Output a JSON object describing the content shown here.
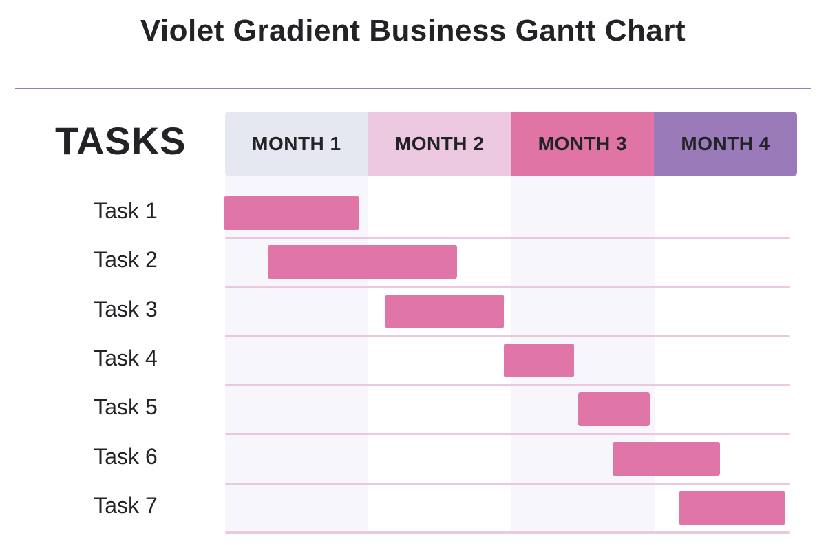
{
  "title": "Violet Gradient Business Gantt Chart",
  "chart_data": {
    "type": "gantt",
    "title": "Violet Gradient Business Gantt Chart",
    "ylabel": "TASKS",
    "categories": [
      "MONTH 1",
      "MONTH 2",
      "MONTH 3",
      "MONTH 4"
    ],
    "header_colors": [
      "#e5e8f0",
      "#ecc8e0",
      "#e074a4",
      "#9a7ab8"
    ],
    "bar_color": "#e075a8",
    "xlim": [
      0,
      4
    ],
    "tasks": [
      {
        "name": "Task 1",
        "start": 0.0,
        "end": 0.95
      },
      {
        "name": "Task 2",
        "start": 0.31,
        "end": 1.63
      },
      {
        "name": "Task 3",
        "start": 1.13,
        "end": 1.96
      },
      {
        "name": "Task 4",
        "start": 1.96,
        "end": 2.45
      },
      {
        "name": "Task 5",
        "start": 2.48,
        "end": 2.98
      },
      {
        "name": "Task 6",
        "start": 2.72,
        "end": 3.47
      },
      {
        "name": "Task 7",
        "start": 3.18,
        "end": 3.93
      }
    ]
  }
}
